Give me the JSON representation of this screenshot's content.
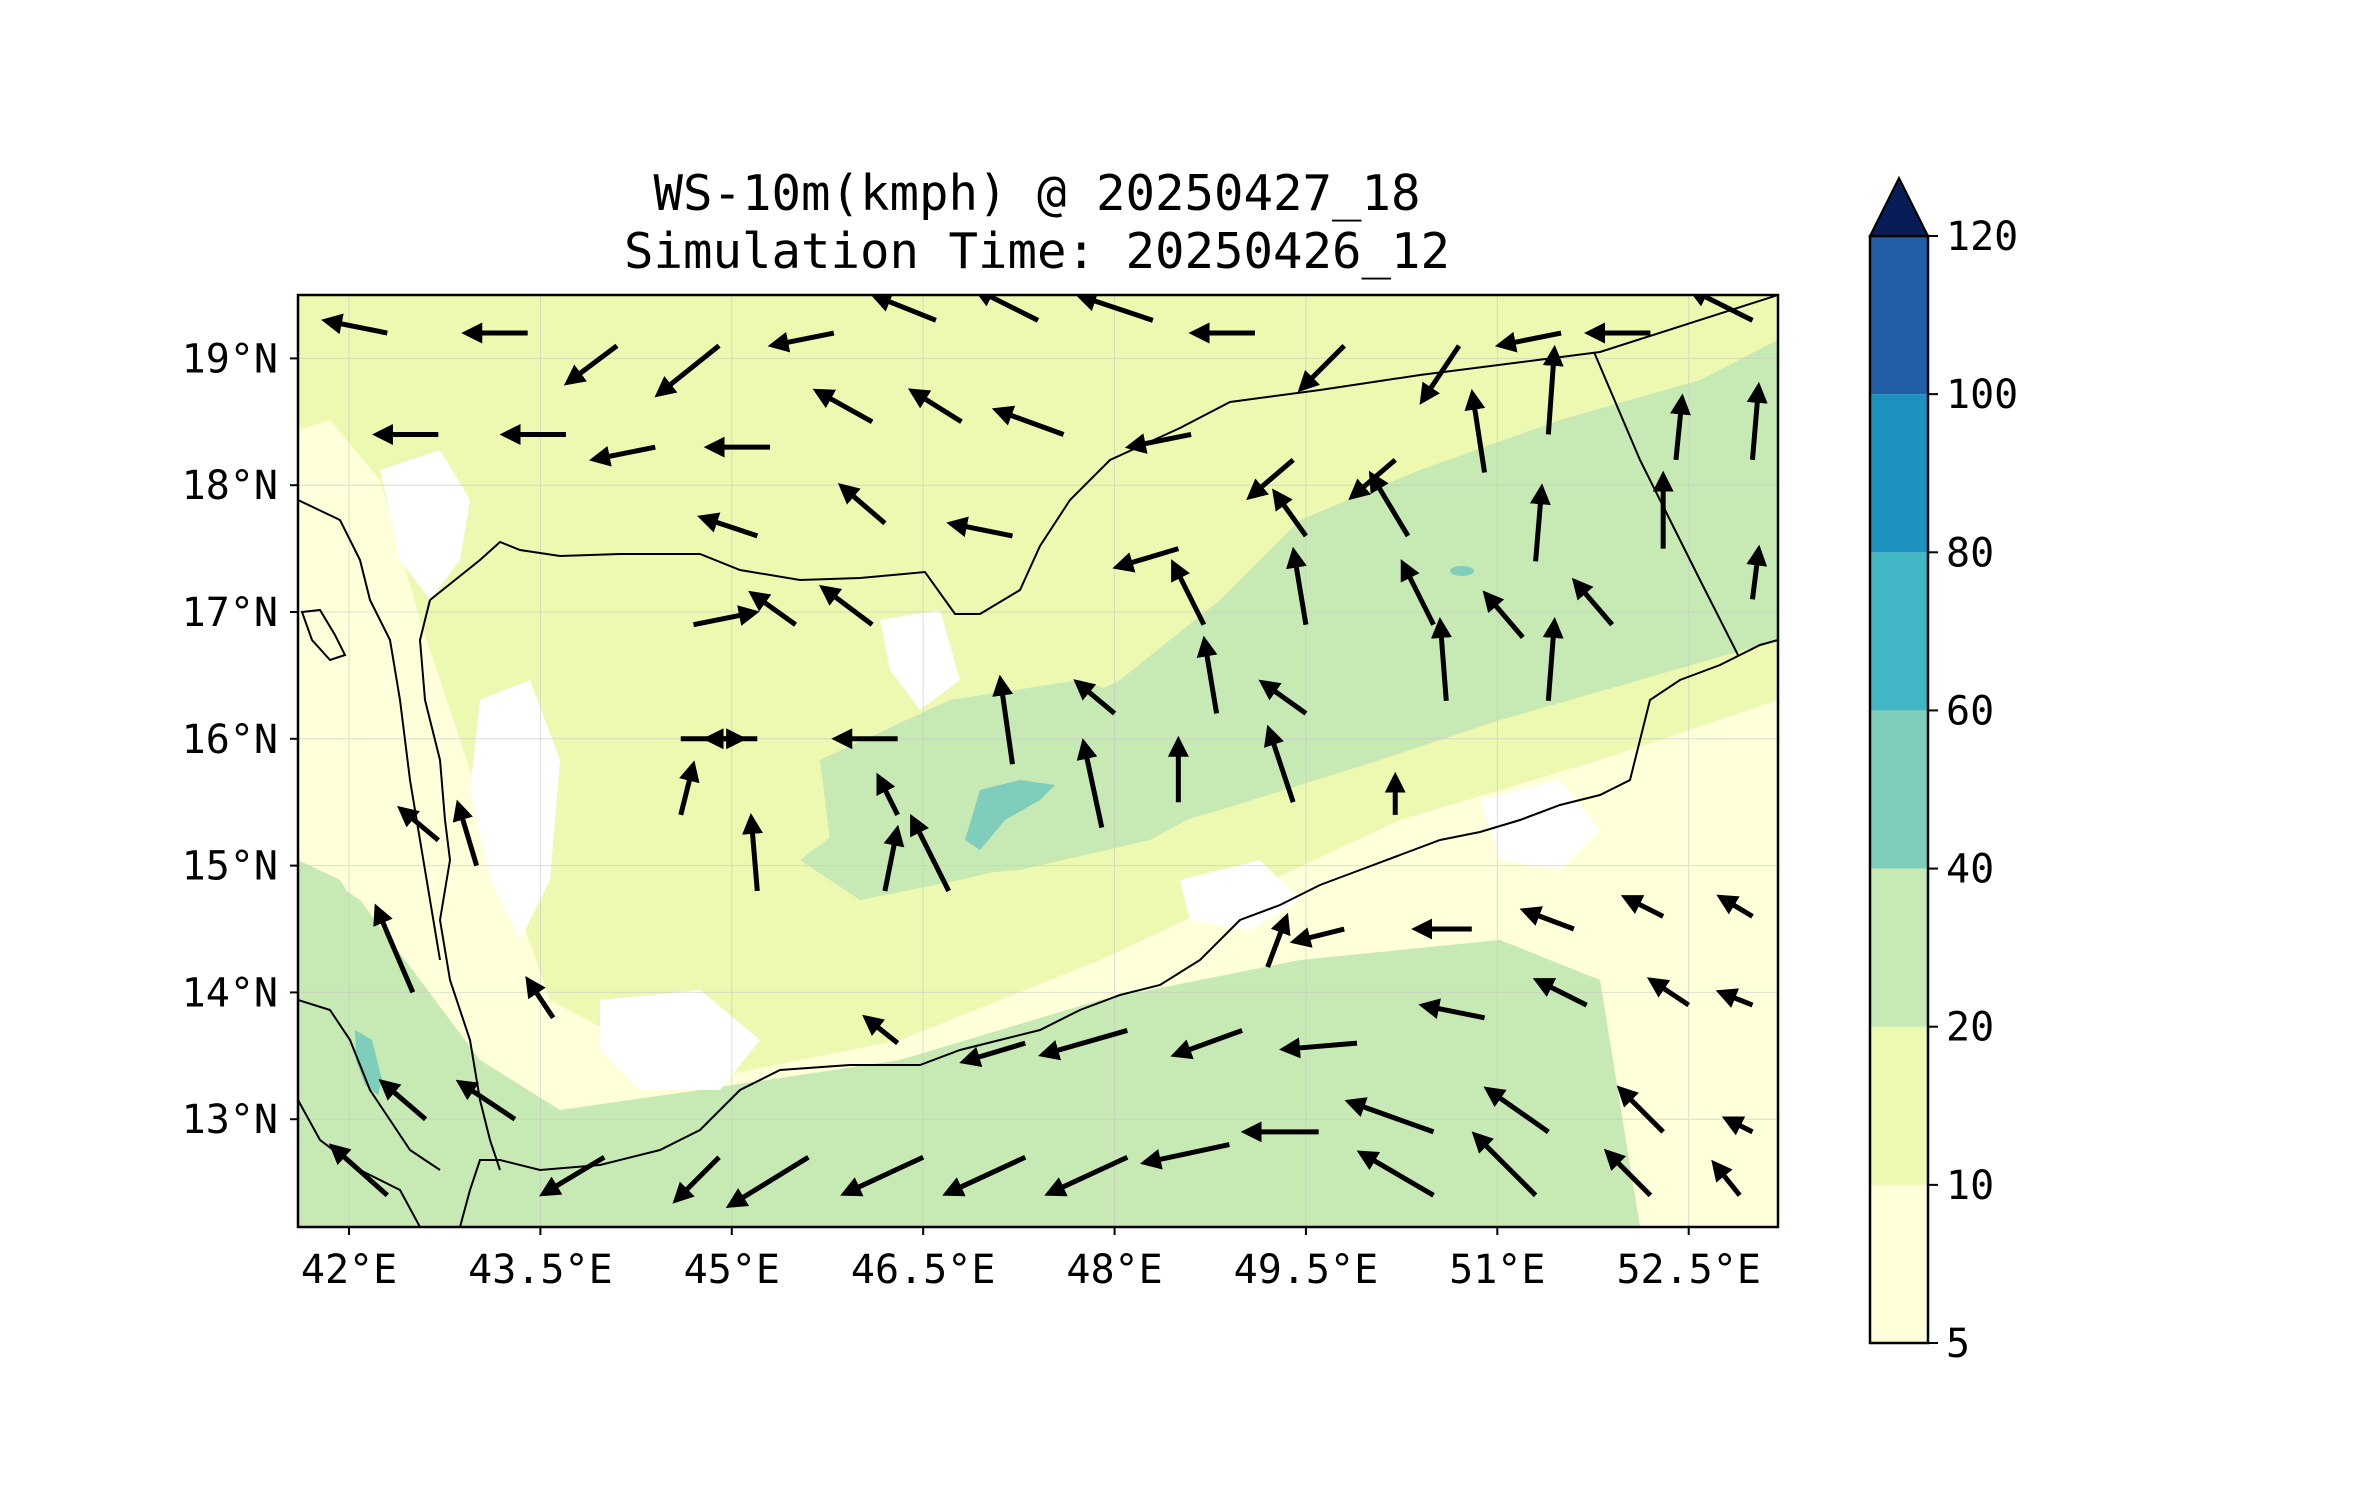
{
  "title": {
    "line1": "WS-10m(kmph) @ 20250427_18",
    "line2": "Simulation Time: 20250426_12"
  },
  "map": {
    "lon_range": [
      41.6,
      53.2
    ],
    "lat_range": [
      12.15,
      19.5
    ],
    "lon_ticks": [
      "42°E",
      "43.5°E",
      "45°E",
      "46.5°E",
      "48°E",
      "49.5°E",
      "51°E",
      "52.5°E"
    ],
    "lon_tick_values": [
      42,
      43.5,
      45,
      46.5,
      48,
      49.5,
      51,
      52.5
    ],
    "lat_ticks": [
      "13°N",
      "14°N",
      "15°N",
      "16°N",
      "17°N",
      "18°N",
      "19°N"
    ],
    "lat_tick_values": [
      13,
      14,
      15,
      16,
      17,
      18,
      19
    ],
    "grid": true,
    "background": "#ffffd9"
  },
  "colorbar": {
    "levels": [
      "5",
      "10",
      "20",
      "40",
      "60",
      "80",
      "100",
      "120"
    ],
    "colors": [
      "#ffffd9",
      "#edf8b1",
      "#c7e9b4",
      "#7fcdbb",
      "#41b6c4",
      "#1d91c0",
      "#225ea8",
      "#0c2c84"
    ],
    "extend_color": "#081d58",
    "extend": "max"
  },
  "chart_data": {
    "type": "heatmap",
    "variable": "WS-10m(kmph)",
    "wind_vectors_note": "arrows show 10m wind direction; length ~ speed",
    "wind_vectors": [
      {
        "lon": 42.3,
        "lat": 19.2,
        "u": -1.0,
        "v": 0.2
      },
      {
        "lon": 43.4,
        "lat": 19.2,
        "u": -1.0,
        "v": 0.0
      },
      {
        "lon": 44.1,
        "lat": 19.1,
        "u": -0.8,
        "v": -0.6
      },
      {
        "lon": 44.9,
        "lat": 19.1,
        "u": -1.0,
        "v": -0.8
      },
      {
        "lon": 45.8,
        "lat": 19.2,
        "u": -1.0,
        "v": -0.2
      },
      {
        "lon": 46.6,
        "lat": 19.3,
        "u": -1.0,
        "v": 0.4
      },
      {
        "lon": 47.4,
        "lat": 19.3,
        "u": -1.0,
        "v": 0.5
      },
      {
        "lon": 48.3,
        "lat": 19.3,
        "u": -1.2,
        "v": 0.4
      },
      {
        "lon": 49.1,
        "lat": 19.2,
        "u": -1.0,
        "v": 0.0
      },
      {
        "lon": 49.8,
        "lat": 19.1,
        "u": -0.7,
        "v": -0.7
      },
      {
        "lon": 50.7,
        "lat": 19.1,
        "u": -0.6,
        "v": -0.9
      },
      {
        "lon": 51.5,
        "lat": 19.2,
        "u": -1.0,
        "v": -0.2
      },
      {
        "lon": 52.2,
        "lat": 19.2,
        "u": -1.0,
        "v": 0.0
      },
      {
        "lon": 53.0,
        "lat": 19.3,
        "u": -1.0,
        "v": 0.5
      },
      {
        "lon": 42.7,
        "lat": 18.4,
        "u": -1.0,
        "v": 0.0
      },
      {
        "lon": 43.7,
        "lat": 18.4,
        "u": -1.0,
        "v": 0.0
      },
      {
        "lon": 44.4,
        "lat": 18.3,
        "u": -1.0,
        "v": -0.2
      },
      {
        "lon": 45.3,
        "lat": 18.3,
        "u": -1.0,
        "v": 0.0
      },
      {
        "lon": 46.1,
        "lat": 18.5,
        "u": -0.9,
        "v": 0.5
      },
      {
        "lon": 46.8,
        "lat": 18.5,
        "u": -0.8,
        "v": 0.5
      },
      {
        "lon": 47.6,
        "lat": 18.4,
        "u": -1.1,
        "v": 0.4
      },
      {
        "lon": 48.6,
        "lat": 18.4,
        "u": -1.0,
        "v": -0.2
      },
      {
        "lon": 49.4,
        "lat": 18.2,
        "u": -0.7,
        "v": -0.6
      },
      {
        "lon": 50.2,
        "lat": 18.2,
        "u": -0.7,
        "v": -0.6
      },
      {
        "lon": 50.9,
        "lat": 18.1,
        "u": -0.2,
        "v": 1.3
      },
      {
        "lon": 51.4,
        "lat": 18.4,
        "u": 0.1,
        "v": 1.4
      },
      {
        "lon": 52.4,
        "lat": 18.2,
        "u": 0.1,
        "v": 1.0
      },
      {
        "lon": 53.0,
        "lat": 18.2,
        "u": 0.1,
        "v": 1.2
      },
      {
        "lon": 45.2,
        "lat": 17.6,
        "u": -0.9,
        "v": 0.3
      },
      {
        "lon": 46.2,
        "lat": 17.7,
        "u": -0.7,
        "v": 0.6
      },
      {
        "lon": 47.2,
        "lat": 17.6,
        "u": -1.0,
        "v": 0.2
      },
      {
        "lon": 48.5,
        "lat": 17.5,
        "u": -1.0,
        "v": -0.3
      },
      {
        "lon": 49.5,
        "lat": 17.6,
        "u": -0.5,
        "v": 0.7
      },
      {
        "lon": 50.3,
        "lat": 17.6,
        "u": -0.6,
        "v": 1.0
      },
      {
        "lon": 51.3,
        "lat": 17.4,
        "u": 0.1,
        "v": 1.2
      },
      {
        "lon": 52.3,
        "lat": 17.5,
        "u": 0.0,
        "v": 1.2
      },
      {
        "lon": 53.0,
        "lat": 17.1,
        "u": 0.1,
        "v": 0.8
      },
      {
        "lon": 44.7,
        "lat": 16.9,
        "u": 1.0,
        "v": 0.2
      },
      {
        "lon": 45.5,
        "lat": 16.9,
        "u": -0.7,
        "v": 0.5
      },
      {
        "lon": 46.1,
        "lat": 16.9,
        "u": -0.8,
        "v": 0.6
      },
      {
        "lon": 48.7,
        "lat": 16.9,
        "u": -0.5,
        "v": 1.0
      },
      {
        "lon": 49.5,
        "lat": 16.9,
        "u": -0.2,
        "v": 1.2
      },
      {
        "lon": 50.5,
        "lat": 16.9,
        "u": -0.5,
        "v": 1.0
      },
      {
        "lon": 51.2,
        "lat": 16.8,
        "u": -0.6,
        "v": 0.7
      },
      {
        "lon": 51.9,
        "lat": 16.9,
        "u": -0.6,
        "v": 0.7
      },
      {
        "lon": 44.6,
        "lat": 16.0,
        "u": 1.0,
        "v": 0.0
      },
      {
        "lon": 45.2,
        "lat": 16.0,
        "u": -0.8,
        "v": 0.0
      },
      {
        "lon": 46.3,
        "lat": 16.0,
        "u": -1.0,
        "v": 0.0
      },
      {
        "lon": 47.2,
        "lat": 15.8,
        "u": -0.2,
        "v": 1.4
      },
      {
        "lon": 48.0,
        "lat": 16.2,
        "u": -0.6,
        "v": 0.5
      },
      {
        "lon": 48.8,
        "lat": 16.2,
        "u": -0.2,
        "v": 1.2
      },
      {
        "lon": 49.5,
        "lat": 16.2,
        "u": -0.7,
        "v": 0.5
      },
      {
        "lon": 50.6,
        "lat": 16.3,
        "u": -0.1,
        "v": 1.3
      },
      {
        "lon": 51.4,
        "lat": 16.3,
        "u": 0.1,
        "v": 1.3
      },
      {
        "lon": 44.6,
        "lat": 15.4,
        "u": 0.2,
        "v": 0.8
      },
      {
        "lon": 46.3,
        "lat": 15.4,
        "u": -0.3,
        "v": 0.6
      },
      {
        "lon": 47.9,
        "lat": 15.3,
        "u": -0.3,
        "v": 1.4
      },
      {
        "lon": 48.5,
        "lat": 15.5,
        "u": 0.0,
        "v": 1.0
      },
      {
        "lon": 49.4,
        "lat": 15.5,
        "u": -0.4,
        "v": 1.2
      },
      {
        "lon": 50.2,
        "lat": 15.4,
        "u": 0.0,
        "v": 0.6
      },
      {
        "lon": 42.7,
        "lat": 15.2,
        "u": -0.6,
        "v": 0.5
      },
      {
        "lon": 43.0,
        "lat": 15.0,
        "u": -0.3,
        "v": 1.0
      },
      {
        "lon": 45.2,
        "lat": 14.8,
        "u": -0.1,
        "v": 1.2
      },
      {
        "lon": 46.2,
        "lat": 14.8,
        "u": 0.2,
        "v": 1.0
      },
      {
        "lon": 46.7,
        "lat": 14.8,
        "u": -0.6,
        "v": 1.2
      },
      {
        "lon": 42.5,
        "lat": 14.0,
        "u": -0.6,
        "v": 1.4
      },
      {
        "lon": 49.2,
        "lat": 14.2,
        "u": 0.3,
        "v": 0.8
      },
      {
        "lon": 49.8,
        "lat": 14.5,
        "u": -0.8,
        "v": -0.2
      },
      {
        "lon": 50.8,
        "lat": 14.5,
        "u": -0.9,
        "v": 0.0
      },
      {
        "lon": 51.6,
        "lat": 14.5,
        "u": -0.8,
        "v": 0.3
      },
      {
        "lon": 52.3,
        "lat": 14.6,
        "u": -0.6,
        "v": 0.3
      },
      {
        "lon": 53.0,
        "lat": 14.6,
        "u": -0.5,
        "v": 0.3
      },
      {
        "lon": 43.6,
        "lat": 13.8,
        "u": -0.4,
        "v": 0.6
      },
      {
        "lon": 46.3,
        "lat": 13.6,
        "u": -0.5,
        "v": 0.4
      },
      {
        "lon": 47.3,
        "lat": 13.6,
        "u": -1.0,
        "v": -0.3
      },
      {
        "lon": 48.1,
        "lat": 13.7,
        "u": -1.4,
        "v": -0.4
      },
      {
        "lon": 49.0,
        "lat": 13.7,
        "u": -1.1,
        "v": -0.4
      },
      {
        "lon": 49.9,
        "lat": 13.6,
        "u": -1.2,
        "v": -0.1
      },
      {
        "lon": 50.9,
        "lat": 13.8,
        "u": -1.0,
        "v": 0.2
      },
      {
        "lon": 51.7,
        "lat": 13.9,
        "u": -0.8,
        "v": 0.4
      },
      {
        "lon": 52.5,
        "lat": 13.9,
        "u": -0.6,
        "v": 0.4
      },
      {
        "lon": 53.0,
        "lat": 13.9,
        "u": -0.5,
        "v": 0.2
      },
      {
        "lon": 42.6,
        "lat": 13.0,
        "u": -0.7,
        "v": 0.6
      },
      {
        "lon": 43.3,
        "lat": 13.0,
        "u": -0.9,
        "v": 0.6
      },
      {
        "lon": 44.0,
        "lat": 12.7,
        "u": -1.0,
        "v": -0.6
      },
      {
        "lon": 44.9,
        "lat": 12.7,
        "u": -0.7,
        "v": -0.7
      },
      {
        "lon": 45.6,
        "lat": 12.7,
        "u": -1.3,
        "v": -0.8
      },
      {
        "lon": 46.5,
        "lat": 12.7,
        "u": -1.3,
        "v": -0.6
      },
      {
        "lon": 47.3,
        "lat": 12.7,
        "u": -1.3,
        "v": -0.6
      },
      {
        "lon": 48.1,
        "lat": 12.7,
        "u": -1.3,
        "v": -0.6
      },
      {
        "lon": 48.9,
        "lat": 12.8,
        "u": -1.4,
        "v": -0.3
      },
      {
        "lon": 49.6,
        "lat": 12.9,
        "u": -1.2,
        "v": 0.0
      },
      {
        "lon": 50.5,
        "lat": 12.9,
        "u": -1.4,
        "v": 0.5
      },
      {
        "lon": 51.4,
        "lat": 12.9,
        "u": -1.0,
        "v": 0.7
      },
      {
        "lon": 52.3,
        "lat": 12.9,
        "u": -0.7,
        "v": 0.7
      },
      {
        "lon": 53.0,
        "lat": 12.9,
        "u": -0.4,
        "v": 0.2
      },
      {
        "lon": 42.3,
        "lat": 12.4,
        "u": -0.9,
        "v": 0.8
      },
      {
        "lon": 50.5,
        "lat": 12.4,
        "u": -1.2,
        "v": 0.7
      },
      {
        "lon": 51.3,
        "lat": 12.4,
        "u": -1.0,
        "v": 1.0
      },
      {
        "lon": 52.2,
        "lat": 12.4,
        "u": -0.7,
        "v": 0.7
      },
      {
        "lon": 52.9,
        "lat": 12.4,
        "u": -0.4,
        "v": 0.5
      }
    ]
  }
}
